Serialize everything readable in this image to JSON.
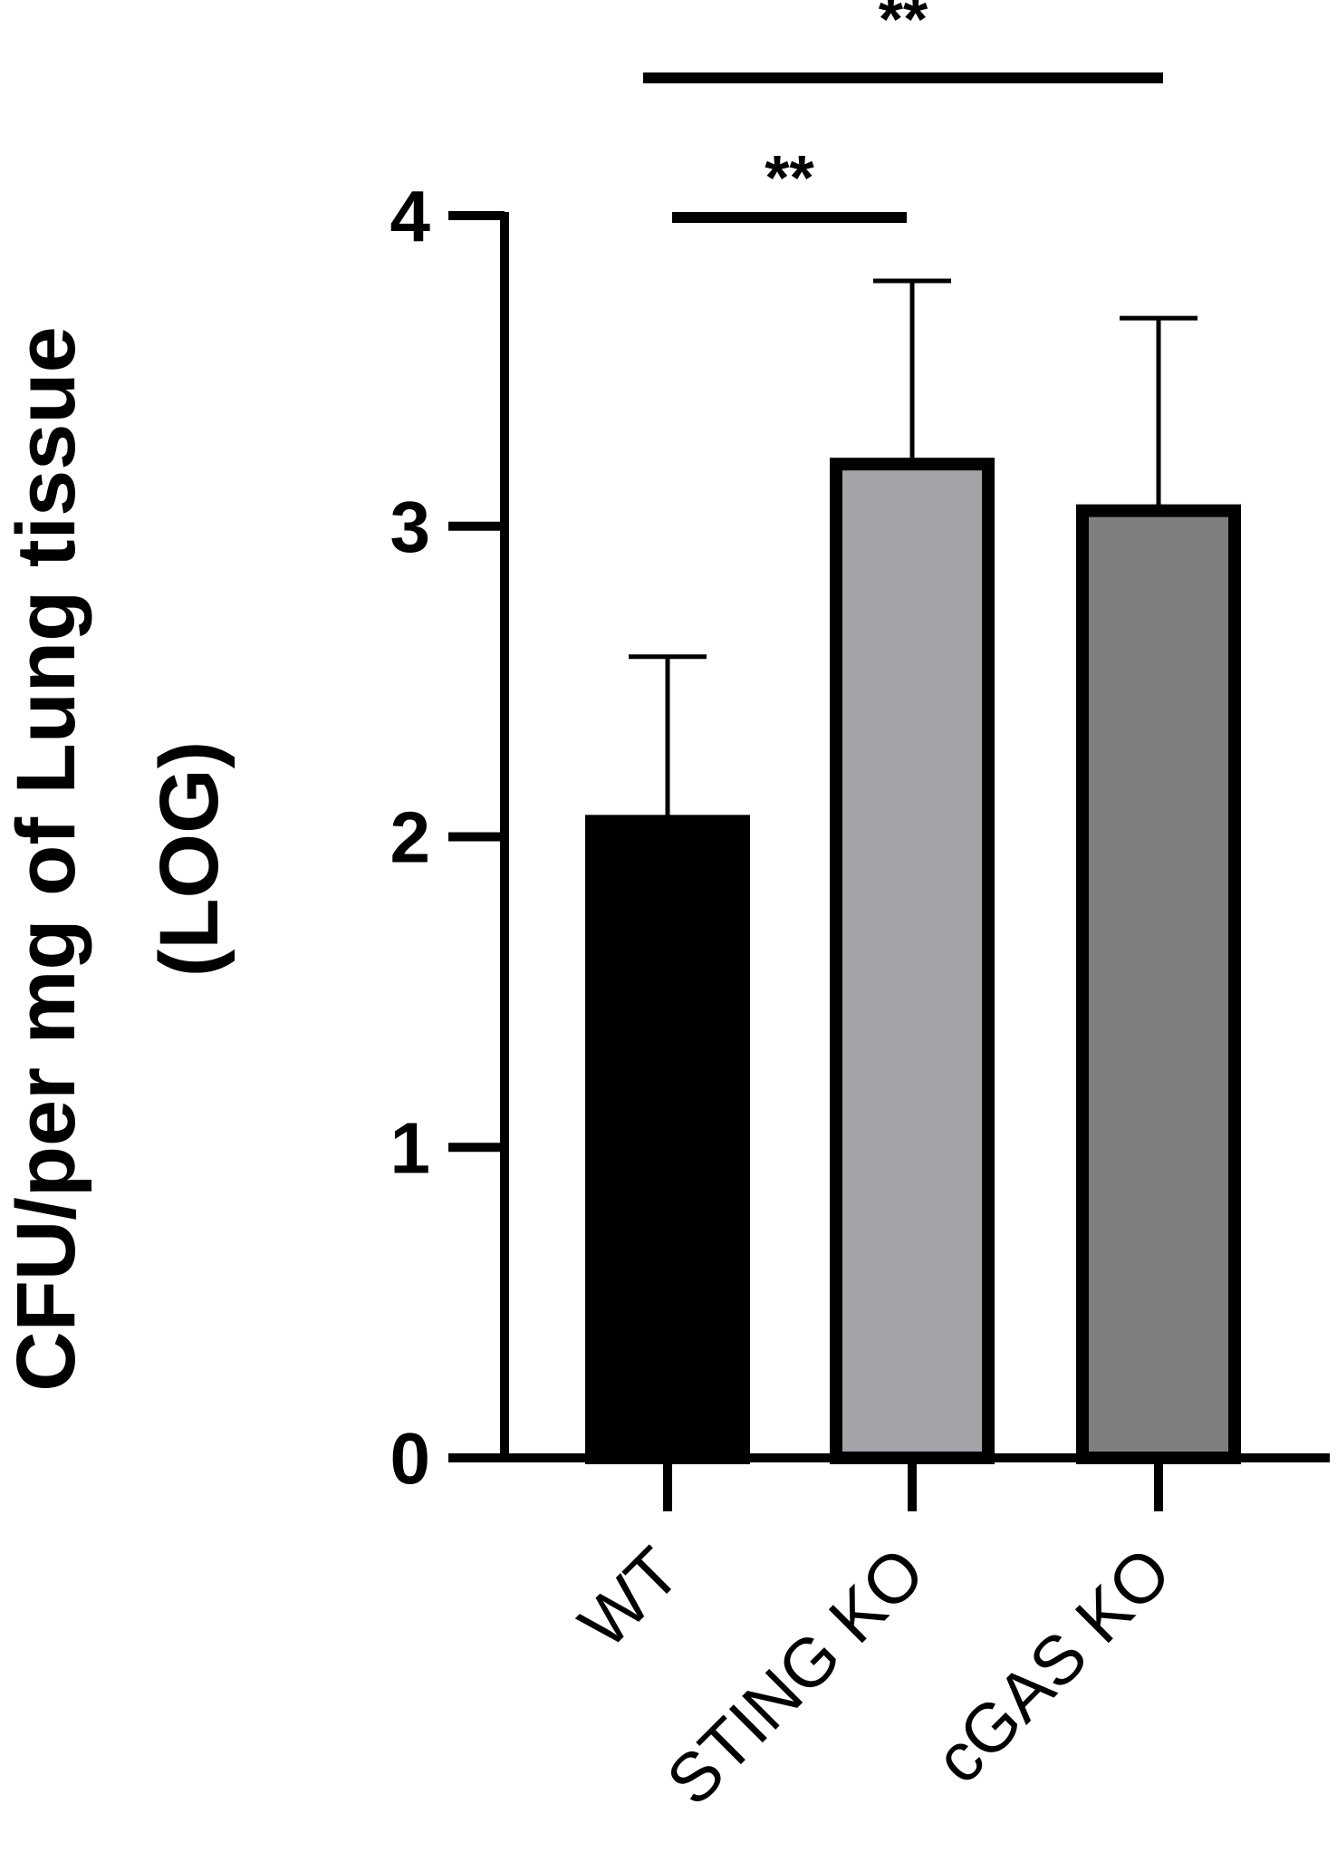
{
  "chart_data": {
    "type": "bar",
    "ylabel_lines": [
      "CFU/per mg of Lung tissue",
      "(LOG)"
    ],
    "categories": [
      "WT",
      "STING KO",
      "cGAS KO"
    ],
    "values": [
      2.05,
      3.2,
      3.05
    ],
    "errors": [
      0.53,
      0.59,
      0.62
    ],
    "colors": [
      "#000000",
      "#a3a3a8",
      "#7f7f7f"
    ],
    "ylim": [
      0,
      4
    ],
    "yticks": [
      "0",
      "1",
      "2",
      "3",
      "4"
    ],
    "significance": [
      {
        "from": "WT",
        "to": "STING KO",
        "label": "**"
      },
      {
        "from": "WT",
        "to": "cGAS KO",
        "label": "**"
      }
    ]
  }
}
